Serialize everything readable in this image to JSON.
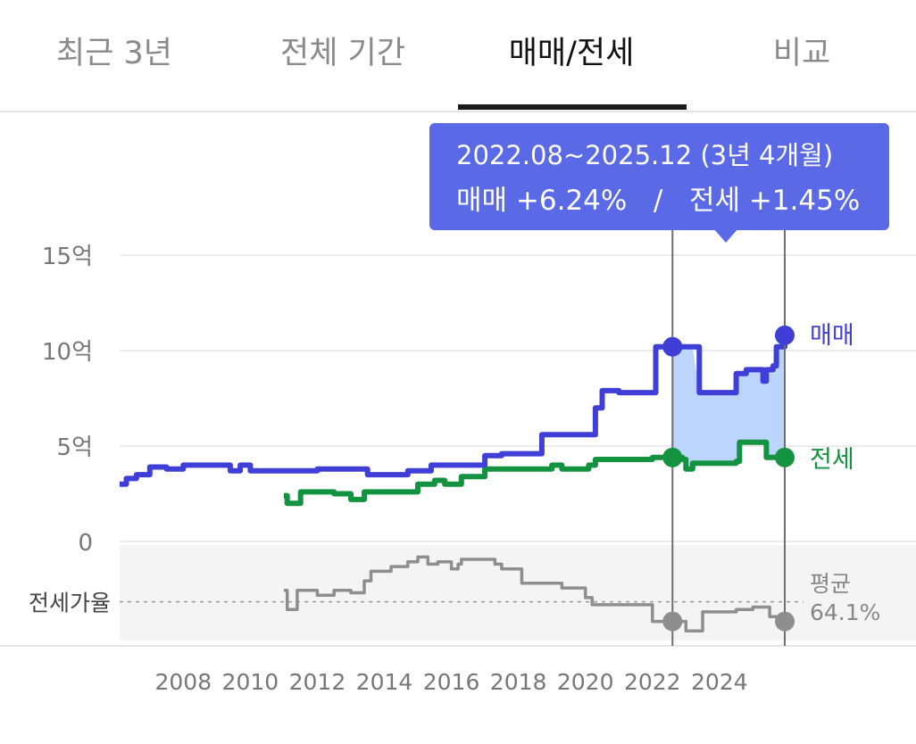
{
  "tabs": [
    {
      "label": "최근 3년",
      "active": false
    },
    {
      "label": "전체 기간",
      "active": false
    },
    {
      "label": "매매/전세",
      "active": true
    },
    {
      "label": "비교",
      "active": false
    }
  ],
  "tooltip": {
    "period": "2022.08~2025.12 (3년 4개월)",
    "sale_label": "매매 +6.24%",
    "separator": "/",
    "jeonse_label": "전세 +1.45%"
  },
  "colors": {
    "sale": "#3f3fd8",
    "jeonse": "#13923f",
    "ratio": "#8e8e8e",
    "highlight_fill": "#b7d3fc",
    "tooltip_bg": "#5a69e6",
    "grid": "#e6e6e6",
    "ratio_band": "#f4f4f4"
  },
  "chart_data": {
    "type": "line",
    "y_axis": {
      "ticks": [
        {
          "value": 15,
          "label": "15억"
        },
        {
          "value": 10,
          "label": "10억"
        },
        {
          "value": 5,
          "label": "5억"
        },
        {
          "value": 0,
          "label": "0"
        }
      ],
      "ylim": [
        0,
        15
      ]
    },
    "x_axis": {
      "ticks": [
        "2008",
        "2010",
        "2012",
        "2014",
        "2016",
        "2018",
        "2020",
        "2022",
        "2024"
      ],
      "xlim": [
        2006.1,
        2026.3
      ]
    },
    "series": [
      {
        "name": "매매",
        "unit": "억",
        "points": [
          [
            2006.1,
            3.0
          ],
          [
            2006.3,
            3.3
          ],
          [
            2006.6,
            3.5
          ],
          [
            2007.0,
            3.9
          ],
          [
            2007.5,
            3.8
          ],
          [
            2008.0,
            4.0
          ],
          [
            2009.3,
            4.0
          ],
          [
            2009.4,
            3.7
          ],
          [
            2009.7,
            4.0
          ],
          [
            2010.0,
            3.7
          ],
          [
            2011.5,
            3.7
          ],
          [
            2012.0,
            3.8
          ],
          [
            2013.4,
            3.8
          ],
          [
            2013.5,
            3.5
          ],
          [
            2014.6,
            3.5
          ],
          [
            2014.7,
            3.7
          ],
          [
            2015.3,
            3.7
          ],
          [
            2015.4,
            4.0
          ],
          [
            2016.8,
            4.0
          ],
          [
            2017.0,
            4.5
          ],
          [
            2017.5,
            4.6
          ],
          [
            2018.6,
            4.6
          ],
          [
            2018.7,
            5.6
          ],
          [
            2020.2,
            5.6
          ],
          [
            2020.3,
            7.0
          ],
          [
            2020.5,
            7.9
          ],
          [
            2021.0,
            7.8
          ],
          [
            2022.0,
            7.8
          ],
          [
            2022.1,
            10.2
          ],
          [
            2022.6,
            10.2
          ],
          [
            2023.0,
            10.2
          ],
          [
            2023.2,
            10.2
          ],
          [
            2023.4,
            7.8
          ],
          [
            2024.4,
            7.8
          ],
          [
            2024.5,
            8.8
          ],
          [
            2024.8,
            9.0
          ],
          [
            2025.3,
            8.4
          ],
          [
            2025.4,
            9.0
          ],
          [
            2025.6,
            9.2
          ],
          [
            2025.7,
            10.2
          ],
          [
            2025.95,
            10.8
          ]
        ]
      },
      {
        "name": "전세",
        "unit": "억",
        "points": [
          [
            2011.0,
            2.4
          ],
          [
            2011.1,
            2.0
          ],
          [
            2011.4,
            2.0
          ],
          [
            2011.5,
            2.6
          ],
          [
            2012.5,
            2.5
          ],
          [
            2013.0,
            2.2
          ],
          [
            2013.4,
            2.6
          ],
          [
            2014.9,
            2.6
          ],
          [
            2015.0,
            3.0
          ],
          [
            2015.5,
            3.2
          ],
          [
            2015.8,
            3.0
          ],
          [
            2016.3,
            3.4
          ],
          [
            2016.8,
            3.4
          ],
          [
            2017.0,
            3.8
          ],
          [
            2018.0,
            3.8
          ],
          [
            2018.6,
            3.8
          ],
          [
            2019.0,
            4.0
          ],
          [
            2019.3,
            3.8
          ],
          [
            2019.8,
            3.8
          ],
          [
            2020.1,
            4.0
          ],
          [
            2020.3,
            4.3
          ],
          [
            2020.6,
            4.3
          ],
          [
            2022.0,
            4.4
          ],
          [
            2022.6,
            4.4
          ],
          [
            2022.9,
            4.3
          ],
          [
            2023.0,
            3.8
          ],
          [
            2023.2,
            4.1
          ],
          [
            2024.5,
            4.2
          ],
          [
            2024.6,
            5.2
          ],
          [
            2025.2,
            5.2
          ],
          [
            2025.4,
            4.4
          ],
          [
            2025.95,
            4.4
          ]
        ]
      },
      {
        "name": "전세가율",
        "unit": "%",
        "points": [
          [
            2011.0,
            66.5
          ],
          [
            2011.1,
            62.5
          ],
          [
            2011.3,
            62.5
          ],
          [
            2011.4,
            66.5
          ],
          [
            2011.7,
            66.5
          ],
          [
            2012.0,
            65.5
          ],
          [
            2012.5,
            66.5
          ],
          [
            2013.0,
            66.0
          ],
          [
            2013.2,
            66.0
          ],
          [
            2013.4,
            68.5
          ],
          [
            2013.6,
            70.5
          ],
          [
            2014.0,
            70.5
          ],
          [
            2014.2,
            71.5
          ],
          [
            2014.6,
            71.5
          ],
          [
            2014.7,
            72.5
          ],
          [
            2015.0,
            73.5
          ],
          [
            2015.3,
            72.0
          ],
          [
            2015.6,
            72.5
          ],
          [
            2016.0,
            71.0
          ],
          [
            2016.2,
            72.0
          ],
          [
            2016.3,
            73.0
          ],
          [
            2017.0,
            73.0
          ],
          [
            2017.3,
            72.0
          ],
          [
            2017.5,
            71.0
          ],
          [
            2018.0,
            71.0
          ],
          [
            2018.1,
            68.0
          ],
          [
            2018.6,
            68.0
          ],
          [
            2019.3,
            67.0
          ],
          [
            2019.8,
            67.0
          ],
          [
            2020.0,
            65.0
          ],
          [
            2020.2,
            63.5
          ],
          [
            2021.5,
            63.5
          ],
          [
            2022.0,
            60.0
          ],
          [
            2022.6,
            60.0
          ],
          [
            2022.8,
            60.0
          ],
          [
            2023.0,
            58.0
          ],
          [
            2023.5,
            62.0
          ],
          [
            2024.5,
            62.5
          ],
          [
            2025.0,
            63.0
          ],
          [
            2025.5,
            61.0
          ],
          [
            2025.95,
            60.0
          ]
        ]
      }
    ],
    "ratio_average": {
      "label": "평균",
      "value": "64.1%"
    },
    "ratio_axis_label": "전세가율",
    "highlight_range": {
      "from": 2022.6,
      "to": 2025.95
    },
    "end_labels": {
      "sale": "매매",
      "jeonse": "전세"
    }
  }
}
